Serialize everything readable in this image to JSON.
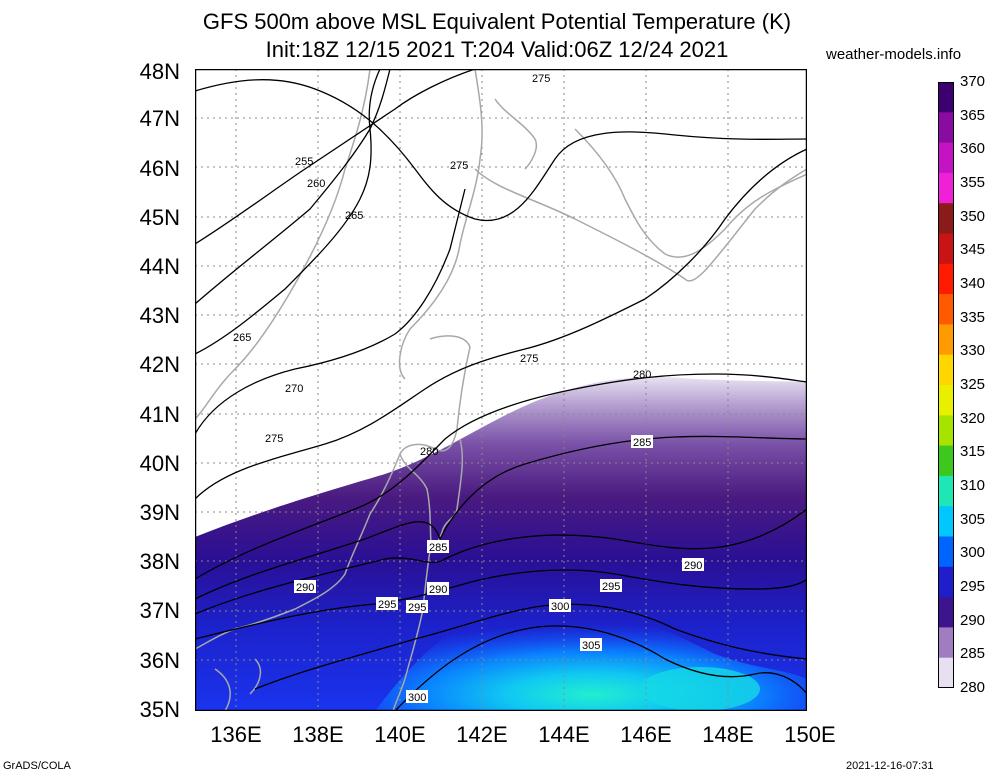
{
  "title_line1": "GFS 500m above MSL Equivalent Potential Temperature (K)",
  "title_line2": "Init:18Z 12/15 2021 T:204 Valid:06Z 12/24 2021",
  "site": "weather-models.info",
  "lat_labels": [
    "48N",
    "47N",
    "46N",
    "45N",
    "44N",
    "43N",
    "42N",
    "41N",
    "40N",
    "39N",
    "38N",
    "37N",
    "36N",
    "35N"
  ],
  "lon_labels": [
    "136E",
    "138E",
    "140E",
    "142E",
    "144E",
    "146E",
    "148E",
    "150E"
  ],
  "colorbar": {
    "labels": [
      "370",
      "365",
      "360",
      "355",
      "350",
      "345",
      "340",
      "335",
      "330",
      "325",
      "320",
      "315",
      "310",
      "305",
      "300",
      "295",
      "290",
      "285",
      "280"
    ],
    "colors": [
      "#3d0070",
      "#8a0ba1",
      "#c413c4",
      "#f01fd8",
      "#8b1a1a",
      "#c81414",
      "#ff1a00",
      "#ff5a00",
      "#ff9a00",
      "#ffd600",
      "#e8f000",
      "#a6e400",
      "#3dc81e",
      "#1ee6b4",
      "#00c8ff",
      "#0064ff",
      "#1e1ecc",
      "#3c1490",
      "#a07cc0",
      "#e6e0f0"
    ]
  },
  "contour_labels": [
    "255",
    "260",
    "265",
    "265",
    "270",
    "275",
    "275",
    "275",
    "275",
    "280",
    "280",
    "285",
    "285",
    "285",
    "290",
    "290",
    "290",
    "295",
    "295",
    "295",
    "300",
    "300",
    "305"
  ],
  "footer_left": "GrADS/COLA",
  "footer_right": "2021-12-16-07:31"
}
